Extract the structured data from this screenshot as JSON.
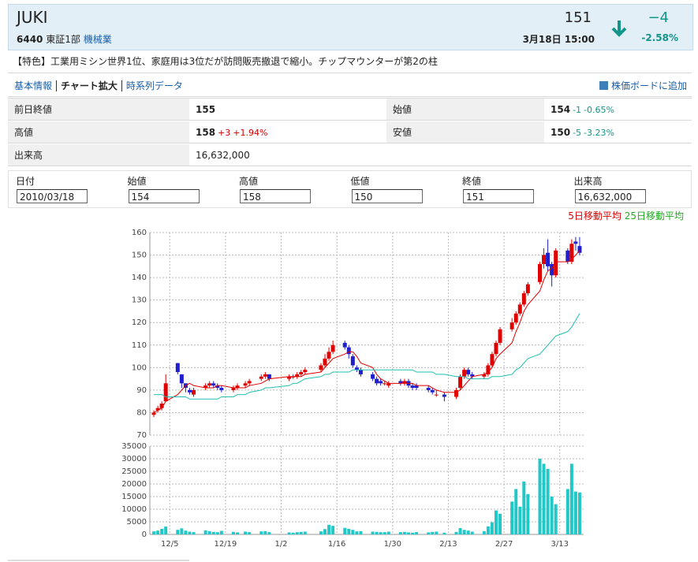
{
  "header": {
    "name": "JUKI",
    "code": "6440",
    "market": "東証1部",
    "industry": "機械業",
    "price": "151",
    "time": "3月18日 15:00",
    "change": "−4",
    "change_pct": "-2.58%"
  },
  "feature": "【特色】工業用ミシン世界1位、家庭用は3位だが訪問販売撤退で縮小。チップマウンターが第2の柱",
  "nav": {
    "links": [
      "基本情報",
      "チャート拡大",
      "時系列データ"
    ],
    "add": "株価ボードに追加"
  },
  "table": {
    "rows": [
      [
        {
          "label": "前日終値",
          "value": "155"
        },
        {
          "label": "始値",
          "value": "154",
          "diff": "-1",
          "pct": "-0.65%"
        }
      ],
      [
        {
          "label": "高値",
          "value": "158",
          "diff": "+3",
          "pct": "+1.94%"
        },
        {
          "label": "安値",
          "value": "150",
          "diff": "-5",
          "pct": "-3.23%"
        }
      ],
      [
        {
          "label": "出来高",
          "value": "16,632,000"
        }
      ]
    ]
  },
  "form": {
    "headers": [
      "日付",
      "始値",
      "高値",
      "低値",
      "終値",
      "出来高"
    ],
    "values": [
      "2010/03/18",
      "154",
      "158",
      "150",
      "151",
      "16,632,000"
    ]
  },
  "chart_data": {
    "type": "candlestick",
    "x": [
      "12/1",
      "12/2",
      "12/3",
      "12/4",
      "12/7",
      "12/8",
      "12/9",
      "12/10",
      "12/11",
      "12/14",
      "12/15",
      "12/16",
      "12/17",
      "12/18",
      "12/21",
      "12/22",
      "12/24",
      "12/25",
      "12/28",
      "12/29",
      "12/30",
      "1/4",
      "1/5",
      "1/6",
      "1/7",
      "1/8",
      "1/12",
      "1/13",
      "1/14",
      "1/15",
      "1/18",
      "1/19",
      "1/20",
      "1/21",
      "1/22",
      "1/25",
      "1/26",
      "1/27",
      "1/28",
      "1/29",
      "2/1",
      "2/2",
      "2/3",
      "2/4",
      "2/5",
      "2/8",
      "2/9",
      "2/10",
      "2/12",
      "2/15",
      "2/16",
      "2/17",
      "2/18",
      "2/19",
      "2/22",
      "2/23",
      "2/24",
      "2/25",
      "2/26",
      "3/1",
      "3/2",
      "3/3",
      "3/4",
      "3/5",
      "3/8",
      "3/9",
      "3/10",
      "3/11",
      "3/12",
      "3/15",
      "3/16",
      "3/17",
      "3/18"
    ],
    "open": [
      79,
      81,
      82,
      85,
      102,
      97,
      93,
      90,
      88,
      91,
      92,
      93,
      92,
      91,
      90,
      91,
      92,
      93,
      95,
      96,
      97,
      95,
      96,
      96,
      97,
      98,
      99,
      101,
      104,
      107,
      111,
      109,
      105,
      100,
      99,
      97,
      95,
      94,
      93,
      92,
      94,
      93,
      94,
      92,
      92,
      91,
      90,
      88,
      88,
      87,
      91,
      96,
      99,
      97,
      96,
      97,
      101,
      106,
      111,
      117,
      120,
      124,
      128,
      133,
      138,
      146,
      151,
      146,
      141,
      152,
      147,
      156,
      154
    ],
    "high": [
      81,
      83,
      85,
      97,
      102,
      97,
      93,
      91,
      91,
      93,
      94,
      94,
      93,
      92,
      92,
      93,
      94,
      95,
      97,
      98,
      97,
      97,
      97,
      98,
      99,
      100,
      102,
      106,
      109,
      112,
      112,
      110,
      106,
      101,
      100,
      98,
      96,
      95,
      94,
      94,
      95,
      95,
      95,
      93,
      93,
      92,
      91,
      90,
      89,
      91,
      97,
      100,
      100,
      98,
      98,
      102,
      107,
      112,
      118,
      122,
      125,
      129,
      134,
      138,
      147,
      153,
      157,
      147,
      153,
      153,
      157,
      158,
      158
    ],
    "low": [
      78,
      80,
      81,
      85,
      97,
      91,
      89,
      88,
      87,
      90,
      91,
      91,
      90,
      89,
      89,
      90,
      91,
      92,
      94,
      95,
      94,
      94,
      95,
      95,
      96,
      97,
      98,
      100,
      103,
      106,
      108,
      104,
      100,
      98,
      96,
      94,
      92,
      92,
      92,
      91,
      92,
      92,
      91,
      90,
      90,
      89,
      88,
      87,
      85,
      86,
      90,
      95,
      96,
      95,
      95,
      96,
      100,
      105,
      110,
      116,
      119,
      123,
      127,
      132,
      137,
      144,
      143,
      136,
      140,
      146,
      146,
      152,
      150
    ],
    "close": [
      80,
      82,
      84,
      93,
      98,
      93,
      91,
      89,
      90,
      92,
      93,
      92,
      91,
      90,
      91,
      92,
      93,
      94,
      96,
      97,
      95,
      96,
      96,
      97,
      98,
      99,
      101,
      104,
      107,
      110,
      109,
      106,
      101,
      99,
      97,
      95,
      93,
      93,
      93,
      93,
      93,
      94,
      92,
      91,
      91,
      90,
      89,
      88,
      87,
      90,
      96,
      99,
      97,
      96,
      97,
      101,
      106,
      111,
      117,
      120,
      124,
      128,
      133,
      137,
      146,
      150,
      145,
      141,
      152,
      147,
      155,
      155,
      151
    ],
    "up_color": "#e00000",
    "down_color": "#1f1fd0",
    "series": [
      {
        "name": "5日移動平均",
        "color": "#e00000",
        "values": [
          80,
          81,
          82,
          85,
          88,
          90,
          92,
          93,
          92,
          91,
          91,
          91,
          92,
          92,
          91,
          91,
          91,
          92,
          93,
          94,
          95,
          96,
          96,
          96,
          96,
          97,
          98,
          100,
          102,
          104,
          106,
          107,
          107,
          105,
          102,
          100,
          97,
          95,
          94,
          93,
          93,
          93,
          93,
          93,
          92,
          92,
          91,
          90,
          89,
          89,
          90,
          92,
          94,
          96,
          97,
          98,
          100,
          104,
          106,
          111,
          116,
          120,
          125,
          128,
          134,
          139,
          143,
          144,
          147,
          147,
          148,
          150,
          152
        ]
      },
      {
        "name": "25日移動平均",
        "color": "#20c0b0",
        "legend_color": "#22aa22",
        "values": [
          88,
          88,
          88,
          87,
          87,
          87,
          87,
          86,
          86,
          86,
          86,
          86,
          86,
          87,
          87,
          88,
          88,
          89,
          90,
          91,
          91,
          92,
          93,
          93,
          94,
          95,
          96,
          97,
          97,
          98,
          98,
          98,
          99,
          99,
          99,
          99,
          99,
          99,
          99,
          99,
          99,
          99,
          99,
          99,
          98,
          98,
          98,
          97,
          97,
          96,
          96,
          96,
          95,
          95,
          95,
          95,
          96,
          96,
          96,
          97,
          99,
          100,
          102,
          104,
          106,
          108,
          110,
          112,
          114,
          116,
          118,
          121,
          124
        ]
      }
    ],
    "xlim": [
      "11/30",
      "3/19"
    ],
    "xticks": [
      "12/5",
      "12/19",
      "1/2",
      "1/16",
      "1/30",
      "2/13",
      "2/27",
      "3/13"
    ],
    "ylim": [
      70,
      160
    ],
    "yticks": [
      70,
      80,
      90,
      100,
      110,
      120,
      130,
      140,
      150,
      160
    ],
    "grid": true,
    "volume": {
      "color": "#22c8c8",
      "values": [
        1200,
        1500,
        2200,
        3100,
        1800,
        2400,
        1500,
        1100,
        900,
        1600,
        1300,
        1000,
        900,
        1400,
        1000,
        800,
        1100,
        900,
        1200,
        1300,
        900,
        800,
        700,
        900,
        1000,
        1100,
        1200,
        2100,
        3800,
        3400,
        2600,
        2200,
        1800,
        1200,
        1300,
        1100,
        1000,
        900,
        900,
        1100,
        900,
        1000,
        800,
        700,
        900,
        800,
        1000,
        1100,
        700,
        1000,
        2500,
        1800,
        1500,
        1100,
        1300,
        3200,
        4800,
        9500,
        8200,
        13000,
        18000,
        11000,
        21000,
        16000,
        30000,
        28000,
        26000,
        15000,
        12000,
        18000,
        28000,
        17000,
        16632
      ],
      "ylim": [
        0,
        35000
      ],
      "yticks": [
        0,
        5000,
        10000,
        15000,
        20000,
        25000,
        30000,
        35000
      ]
    }
  }
}
